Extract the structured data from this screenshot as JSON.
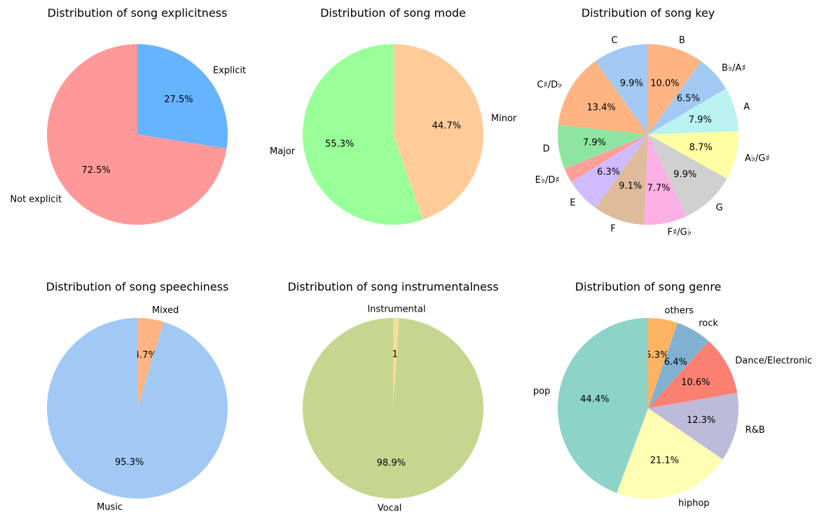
{
  "chart_data": [
    {
      "type": "pie",
      "title": "Distribution of song explicitness",
      "categories": [
        "Explicit",
        "Not explicit"
      ],
      "values": [
        27.5,
        72.5
      ],
      "value_labels": [
        "27.5%",
        "72.5%"
      ],
      "colors": [
        "#66b3ff",
        "#ff9999"
      ],
      "start_angle_deg": 90,
      "direction": "clockwise"
    },
    {
      "type": "pie",
      "title": "Distribution of song mode",
      "categories": [
        "Minor",
        "Major"
      ],
      "values": [
        44.7,
        55.3
      ],
      "value_labels": [
        "44.7%",
        "55.3%"
      ],
      "colors": [
        "#ffcc99",
        "#99ff99"
      ],
      "start_angle_deg": 90,
      "direction": "clockwise"
    },
    {
      "type": "pie",
      "title": "Distribution of song key",
      "categories": [
        "B",
        "B♭/A♯",
        "A",
        "A♭/G♯",
        "G",
        "F♯/G♭",
        "F",
        "E",
        "E♭/D♯",
        "D",
        "C♯/D♭",
        "C"
      ],
      "values": [
        10.0,
        6.5,
        7.9,
        8.7,
        9.9,
        7.7,
        9.1,
        6.3,
        2.6,
        7.9,
        13.4,
        9.9
      ],
      "value_labels": [
        "10.0%",
        "6.5%",
        "7.9%",
        "8.7%",
        "9.9%",
        "7.7%",
        "9.1%",
        "6.3%",
        "",
        "7.9%",
        "13.4%",
        "9.9%"
      ],
      "colors": [
        "#ffb482",
        "#a1c9f4",
        "#b9f2f0",
        "#fffea3",
        "#d0d0d0",
        "#fab0e4",
        "#debb9b",
        "#d0bbff",
        "#ff9f9b",
        "#8de5a1",
        "#ffb482",
        "#a1c9f4"
      ],
      "start_angle_deg": 90,
      "direction": "clockwise"
    },
    {
      "type": "pie",
      "title": "Distribution of song speechiness",
      "categories": [
        "Mixed",
        "Music"
      ],
      "values": [
        4.7,
        95.3
      ],
      "value_labels": [
        "4.7%",
        "95.3%"
      ],
      "colors": [
        "#ffb482",
        "#a1c9f4"
      ],
      "start_angle_deg": 90,
      "direction": "clockwise"
    },
    {
      "type": "pie",
      "title": "Distribution of song instrumentalness",
      "categories": [
        "Instrumental",
        "Vocal"
      ],
      "values": [
        1.1,
        98.9
      ],
      "value_labels": [
        "1.1%",
        "98.9%"
      ],
      "colors": [
        "#f7dc9c",
        "#c6d68f"
      ],
      "start_angle_deg": 90,
      "direction": "clockwise"
    },
    {
      "type": "pie",
      "title": "Distribution of song genre",
      "categories": [
        "others",
        "rock",
        "Dance/Electronic",
        "R&B",
        "hiphop",
        "pop"
      ],
      "values": [
        5.3,
        6.4,
        10.6,
        12.3,
        21.1,
        44.4
      ],
      "value_labels": [
        "5.3%",
        "6.4%",
        "10.6%",
        "12.3%",
        "21.1%",
        "44.4%"
      ],
      "colors": [
        "#fdb462",
        "#80b1d3",
        "#fb8072",
        "#bebada",
        "#ffffb3",
        "#8dd3c7"
      ],
      "start_angle_deg": 90,
      "direction": "clockwise"
    }
  ]
}
